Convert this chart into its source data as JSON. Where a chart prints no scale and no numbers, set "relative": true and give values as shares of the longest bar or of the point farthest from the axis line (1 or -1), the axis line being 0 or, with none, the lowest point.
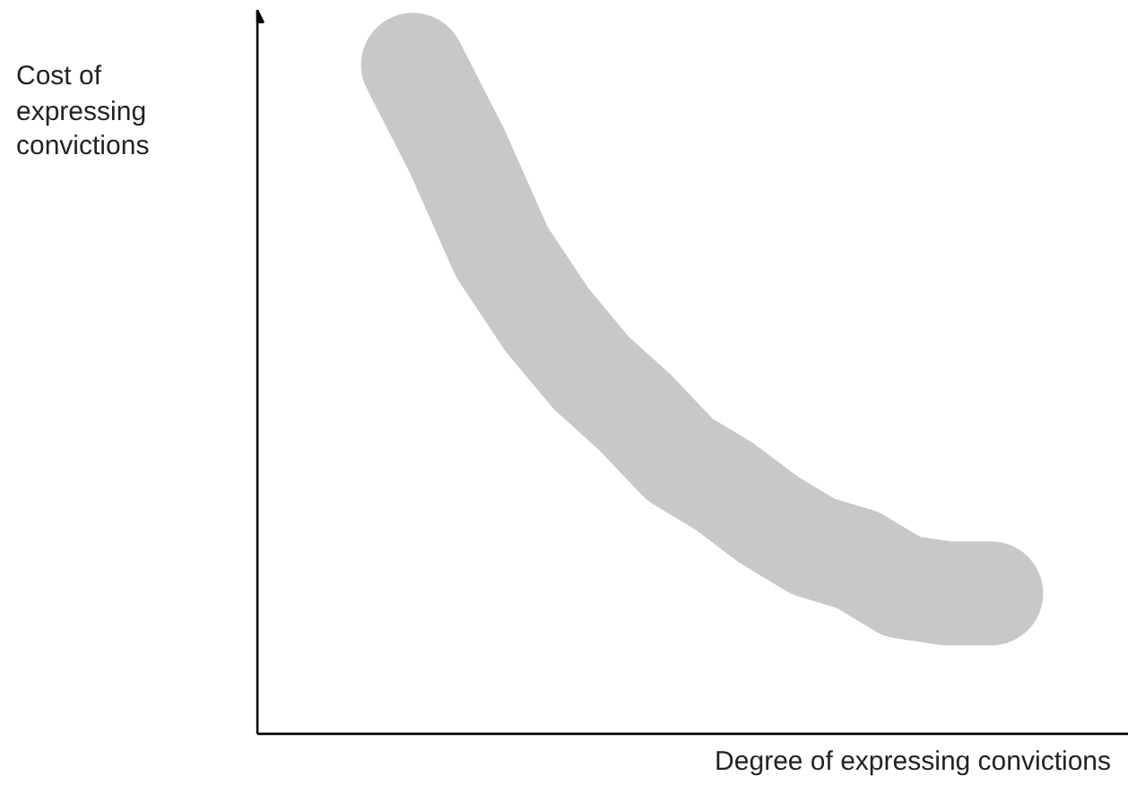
{
  "chart_data": {
    "type": "line",
    "relative": true,
    "xlabel": "Degree of expressing convictions",
    "ylabel": "Cost of\nexpressing\nconvictions",
    "categories": [
      null,
      null,
      null,
      null,
      null,
      null,
      null,
      null,
      null,
      null,
      null,
      null,
      null,
      null,
      null,
      null,
      null,
      null,
      null,
      null
    ],
    "series": [
      {
        "color": "#c8c8c8",
        "values": [
          null,
          null,
          null,
          1.0,
          0.87,
          0.72,
          0.62,
          0.54,
          0.48,
          0.41,
          0.37,
          0.32,
          0.28,
          0.26,
          0.22,
          0.21,
          0.21,
          null,
          null,
          null
        ]
      }
    ]
  }
}
